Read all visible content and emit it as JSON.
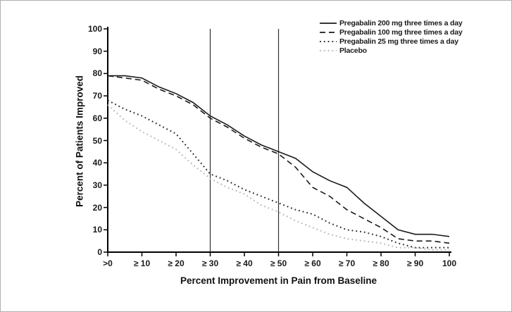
{
  "figure": {
    "background": "#ffffff",
    "border_color": "#b0b0b0",
    "axis_color": "#000000",
    "reference_line_color": "#333333"
  },
  "chart_data": {
    "type": "line",
    "title": "",
    "xlabel": "Percent Improvement in Pain from Baseline",
    "ylabel": "Percent of Patients Improved",
    "xlim": [
      0,
      100
    ],
    "ylim": [
      0,
      100
    ],
    "grid": false,
    "legend_position": "top-right",
    "x_ticks": [
      0,
      10,
      20,
      30,
      40,
      50,
      60,
      70,
      80,
      90,
      100
    ],
    "x_tick_labels": [
      ">0",
      "≥ 10",
      "≥ 20",
      "≥ 30",
      "≥ 40",
      "≥ 50",
      "≥ 60",
      "≥ 70",
      "≥ 80",
      "≥ 90",
      "100"
    ],
    "y_ticks": [
      0,
      10,
      20,
      30,
      40,
      50,
      60,
      70,
      80,
      90,
      100
    ],
    "y_tick_labels": [
      "0",
      "10",
      "20",
      "30",
      "40",
      "50",
      "60",
      "70",
      "80",
      "90",
      "100"
    ],
    "reference_lines_x": [
      30,
      50
    ],
    "x": [
      0,
      5,
      10,
      15,
      20,
      25,
      30,
      35,
      40,
      45,
      50,
      55,
      60,
      65,
      70,
      75,
      80,
      85,
      90,
      95,
      100
    ],
    "series": [
      {
        "name": "Pregabalin 200 mg three times a day",
        "style": "solid",
        "color": "#1a1a1a",
        "values": [
          79,
          79,
          78,
          74,
          71,
          67,
          61,
          57,
          52,
          48,
          45,
          42,
          36,
          32,
          29,
          22,
          16,
          10,
          8,
          8,
          7
        ]
      },
      {
        "name": "Pregabalin 100 mg three times a day",
        "style": "dashed",
        "color": "#1a1a1a",
        "values": [
          79,
          78,
          77,
          73,
          70,
          66,
          60,
          56,
          51,
          47,
          44,
          38,
          29,
          25,
          19,
          15,
          11,
          6,
          5,
          5,
          4
        ]
      },
      {
        "name": "Pregabalin 25 mg three times a day",
        "style": "dotted",
        "color": "#2b2b2b",
        "values": [
          68,
          64,
          61,
          57,
          53,
          44,
          35,
          32,
          28,
          25,
          22,
          19,
          17,
          13,
          10,
          9,
          7,
          4,
          2,
          2,
          2
        ]
      },
      {
        "name": "Placebo",
        "style": "dotted",
        "color": "#b8b8b8",
        "values": [
          66,
          59,
          54,
          50,
          46,
          39,
          33,
          29,
          26,
          21,
          18,
          14,
          11,
          8,
          6,
          5,
          4,
          2,
          2,
          1,
          1
        ]
      }
    ]
  }
}
